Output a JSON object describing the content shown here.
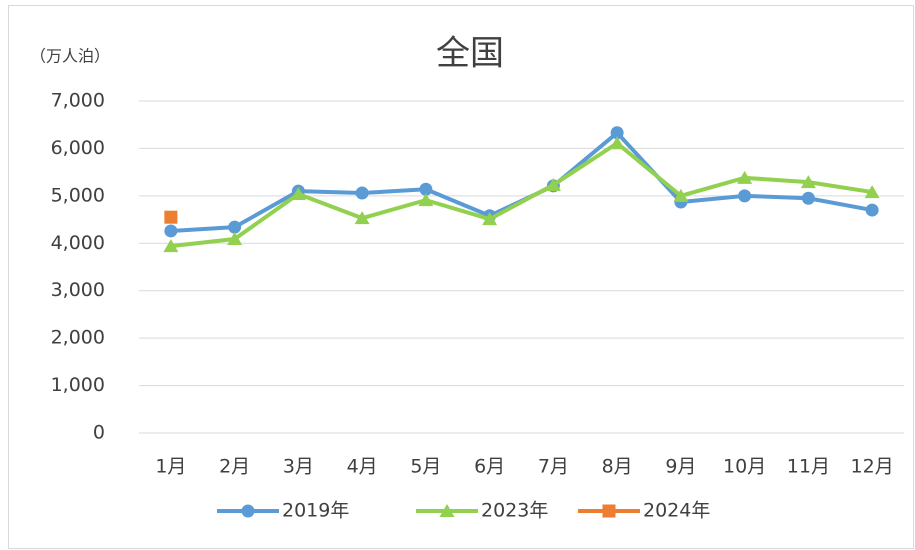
{
  "chart_data": {
    "type": "line",
    "title": "全国",
    "y_label": "（万人泊）",
    "categories": [
      "1月",
      "2月",
      "3月",
      "4月",
      "5月",
      "6月",
      "7月",
      "8月",
      "9月",
      "10月",
      "11月",
      "12月"
    ],
    "series": [
      {
        "name": "2019年",
        "color": "#5b9bd5",
        "marker": "circle",
        "values": [
          4260,
          4340,
          5100,
          5060,
          5140,
          4580,
          5210,
          6330,
          4870,
          5000,
          4950,
          4700
        ]
      },
      {
        "name": "2023年",
        "color": "#92d050",
        "marker": "triangle",
        "values": [
          3940,
          4090,
          5040,
          4530,
          4910,
          4510,
          5230,
          6110,
          5000,
          5380,
          5290,
          5080
        ]
      },
      {
        "name": "2024年",
        "color": "#ed7d31",
        "marker": "square",
        "values": [
          4550,
          null,
          null,
          null,
          null,
          null,
          null,
          null,
          null,
          null,
          null,
          null
        ]
      }
    ],
    "ylim": [
      0,
      7000
    ],
    "yticks": [
      0,
      {
        "value": 1000,
        "label": "1,000"
      },
      {
        "value": 2000,
        "label": "2,000"
      },
      {
        "value": 3000,
        "label": "3,000"
      },
      {
        "value": 4000,
        "label": "4,000"
      },
      {
        "value": 5000,
        "label": "5,000"
      },
      {
        "value": 6000,
        "label": "6,000"
      },
      {
        "value": 7000,
        "label": "7,000"
      }
    ],
    "grid": true,
    "legend": "bottom"
  }
}
